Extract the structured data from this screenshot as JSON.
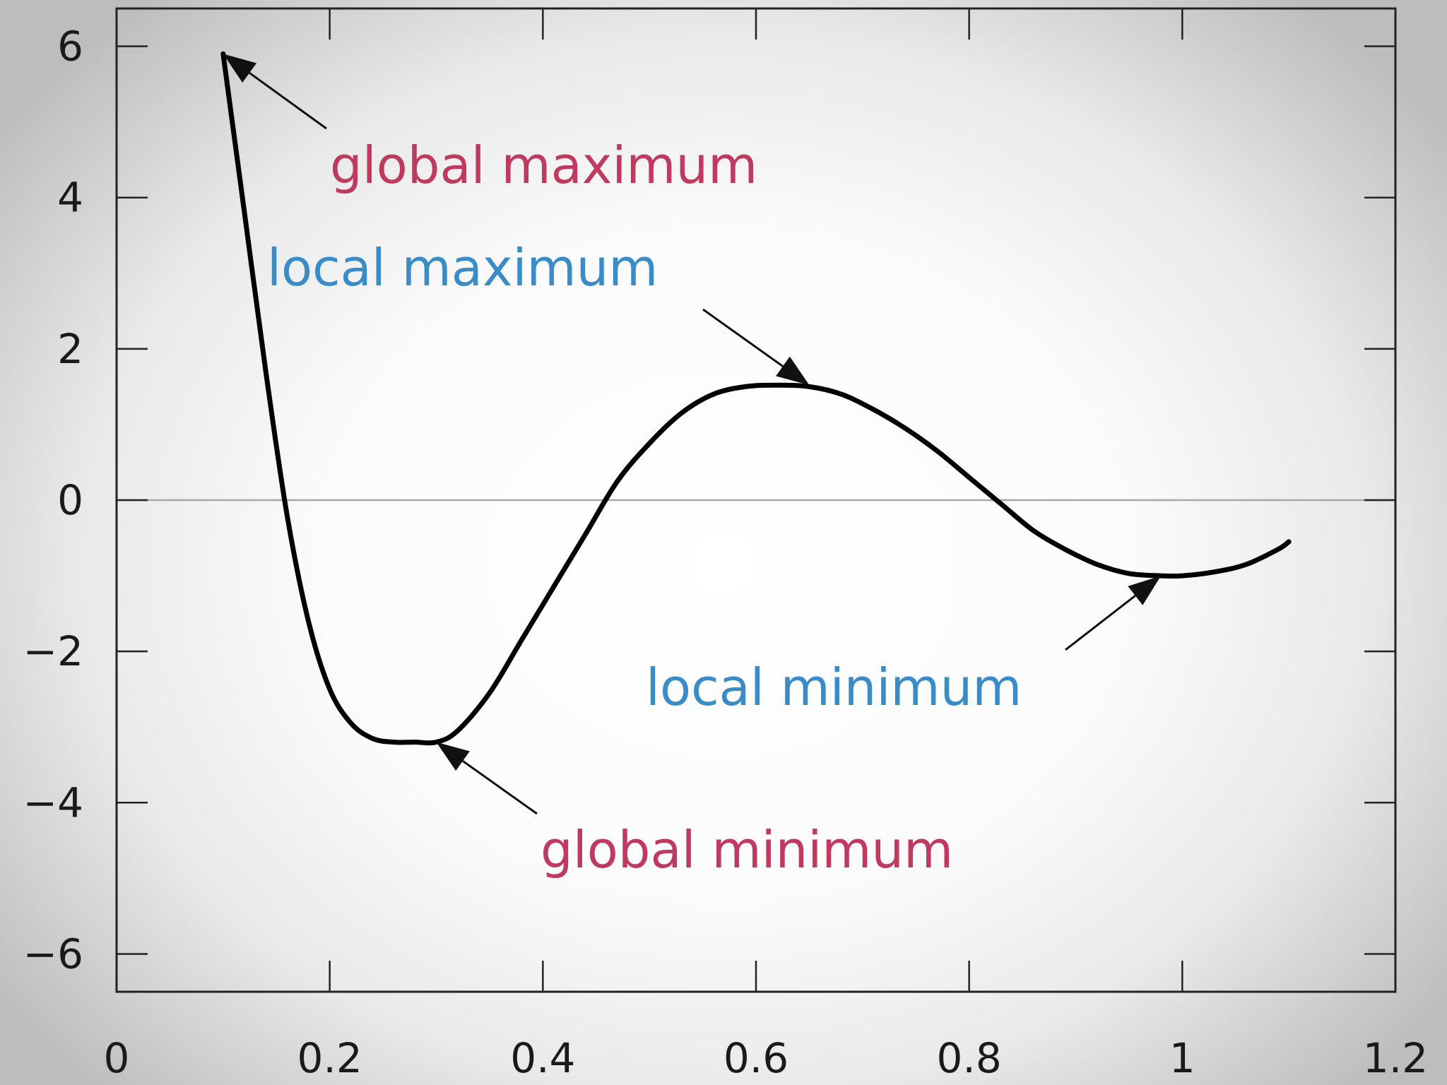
{
  "chart_data": {
    "type": "line",
    "title": "",
    "xlabel": "",
    "ylabel": "",
    "xlim": [
      0,
      1.2
    ],
    "ylim": [
      -6.5,
      6.5
    ],
    "x_ticks": [
      0,
      0.2,
      0.4,
      0.6,
      0.8,
      1,
      1.2
    ],
    "x_tick_labels": [
      "0",
      "0.2",
      "0.4",
      "0.6",
      "0.8",
      "1",
      "1.2"
    ],
    "y_ticks": [
      6,
      4,
      2,
      0,
      -2,
      -4,
      -6
    ],
    "y_tick_labels": [
      "6",
      "4",
      "2",
      "0",
      "−2",
      "−4",
      "−6"
    ],
    "grid": false,
    "zero_line": true,
    "series": [
      {
        "x": [
          0.1,
          0.12,
          0.14,
          0.16,
          0.18,
          0.2,
          0.22,
          0.24,
          0.26,
          0.28,
          0.3,
          0.32,
          0.35,
          0.38,
          0.41,
          0.44,
          0.47,
          0.5,
          0.53,
          0.56,
          0.59,
          0.62,
          0.65,
          0.68,
          0.71,
          0.74,
          0.77,
          0.8,
          0.83,
          0.86,
          0.89,
          0.92,
          0.95,
          0.98,
          1.0,
          1.03,
          1.06,
          1.09,
          1.1
        ],
        "y": [
          5.9,
          3.8,
          1.7,
          -0.2,
          -1.6,
          -2.5,
          -2.95,
          -3.15,
          -3.2,
          -3.2,
          -3.2,
          -3.05,
          -2.55,
          -1.85,
          -1.15,
          -0.45,
          0.25,
          0.75,
          1.15,
          1.4,
          1.5,
          1.52,
          1.5,
          1.4,
          1.2,
          0.95,
          0.65,
          0.3,
          -0.05,
          -0.4,
          -0.65,
          -0.85,
          -0.97,
          -1.0,
          -1.0,
          -0.95,
          -0.85,
          -0.65,
          -0.55
        ],
        "color": "#000000"
      }
    ],
    "annotations": [
      {
        "text": "global maximum",
        "color": "#c0395f",
        "target": [
          0.1,
          5.9
        ]
      },
      {
        "text": "local maximum",
        "color": "#3a8cc8",
        "target": [
          0.65,
          1.52
        ]
      },
      {
        "text": "local minimum",
        "color": "#3a8cc8",
        "target": [
          0.98,
          -1.0
        ]
      },
      {
        "text": "global minimum",
        "color": "#c0395f",
        "target": [
          0.3,
          -3.2
        ]
      }
    ]
  }
}
